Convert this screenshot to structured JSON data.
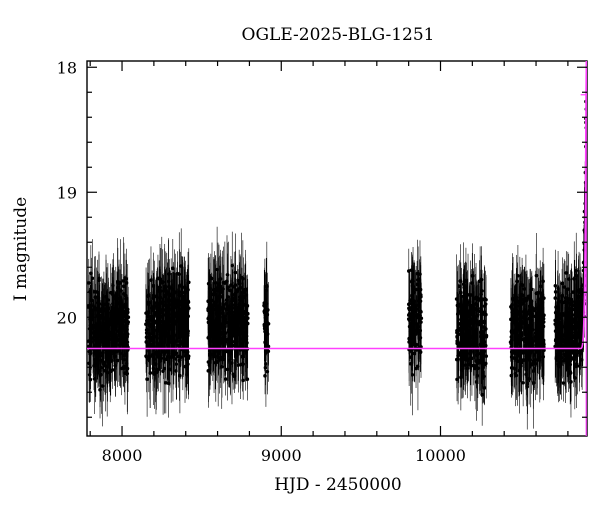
{
  "chart_data": {
    "type": "scatter",
    "title": "OGLE-2025-BLG-1251",
    "xlabel": "HJD - 2450000",
    "ylabel": "I magnitude",
    "xlim": [
      7780,
      10920
    ],
    "ylim": [
      20.95,
      17.95
    ],
    "y_inverted": true,
    "x_ticks": [
      8000,
      9000,
      10000
    ],
    "y_ticks": [
      18,
      19,
      20
    ],
    "x_tick_labels": [
      "8000",
      "9000",
      "10000"
    ],
    "y_tick_labels": [
      "18",
      "19",
      "20"
    ],
    "grid": false,
    "legend": "none",
    "colors": {
      "data": "#000000",
      "model": "#ff40ff"
    },
    "seasons": [
      {
        "x_range": [
          7790,
          8040
        ],
        "mag_center": 20.1,
        "mag_spread": 0.55
      },
      {
        "x_range": [
          8150,
          8420
        ],
        "mag_center": 20.05,
        "mag_spread": 0.55
      },
      {
        "x_range": [
          8540,
          8790
        ],
        "mag_center": 20.05,
        "mag_spread": 0.55
      },
      {
        "x_range": [
          8890,
          8920
        ],
        "mag_center": 20.1,
        "mag_spread": 0.5
      },
      {
        "x_range": [
          9800,
          9880
        ],
        "mag_center": 20.0,
        "mag_spread": 0.5
      },
      {
        "x_range": [
          10100,
          10290
        ],
        "mag_center": 20.1,
        "mag_spread": 0.55
      },
      {
        "x_range": [
          10440,
          10650
        ],
        "mag_center": 20.1,
        "mag_spread": 0.55
      },
      {
        "x_range": [
          10720,
          10920
        ],
        "mag_center": 20.1,
        "mag_spread": 0.55
      }
    ],
    "series": [
      {
        "kind": "model",
        "baseline_mag": 20.25,
        "peak_time": 10915,
        "peak_mag": 17.95,
        "rise_start": 10870
      }
    ]
  }
}
